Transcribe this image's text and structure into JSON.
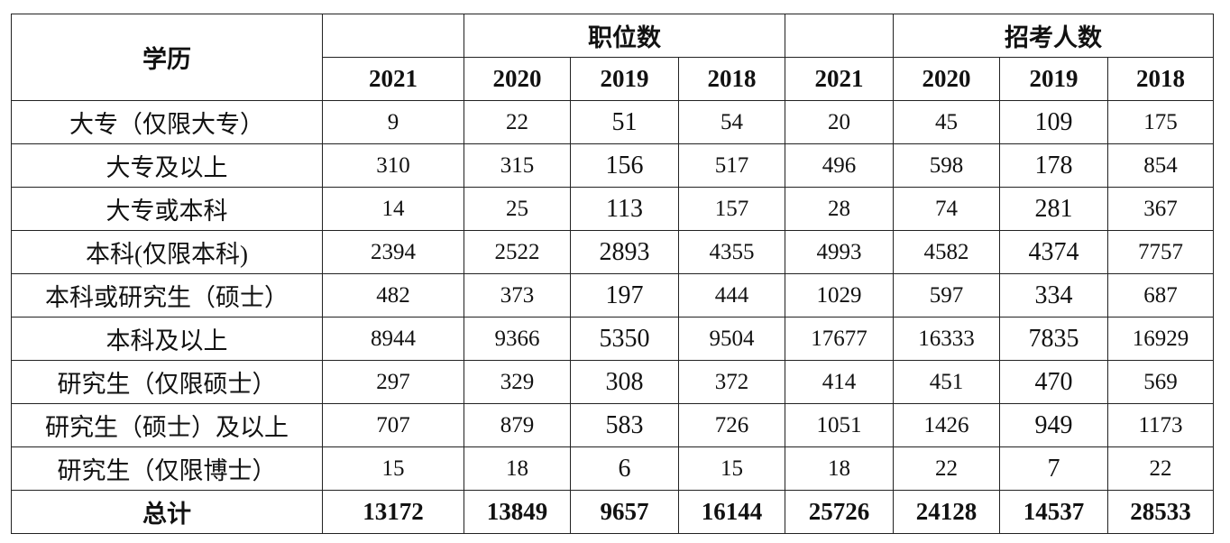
{
  "table": {
    "header": {
      "row_label": "学历",
      "groups": [
        "职位数",
        "招考人数"
      ],
      "years": [
        2021,
        2020,
        2019,
        2018,
        2021,
        2020,
        2019,
        2018
      ]
    },
    "rows": [
      {
        "label": "大专（仅限大专）",
        "values": [
          9,
          22,
          51,
          54,
          20,
          45,
          109,
          175
        ]
      },
      {
        "label": "大专及以上",
        "values": [
          310,
          315,
          156,
          517,
          496,
          598,
          178,
          854
        ]
      },
      {
        "label": "大专或本科",
        "values": [
          14,
          25,
          113,
          157,
          28,
          74,
          281,
          367
        ]
      },
      {
        "label": "本科(仅限本科)",
        "values": [
          2394,
          2522,
          2893,
          4355,
          4993,
          4582,
          4374,
          7757
        ]
      },
      {
        "label": "本科或研究生（硕士）",
        "values": [
          482,
          373,
          197,
          444,
          1029,
          597,
          334,
          687
        ]
      },
      {
        "label": "本科及以上",
        "values": [
          8944,
          9366,
          5350,
          9504,
          17677,
          16333,
          7835,
          16929
        ]
      },
      {
        "label": "研究生（仅限硕士）",
        "values": [
          297,
          329,
          308,
          372,
          414,
          451,
          470,
          569
        ]
      },
      {
        "label": "研究生（硕士）及以上",
        "values": [
          707,
          879,
          583,
          726,
          1051,
          1426,
          949,
          1173
        ]
      },
      {
        "label": "研究生（仅限博士）",
        "values": [
          15,
          18,
          6,
          15,
          18,
          22,
          7,
          22
        ]
      }
    ],
    "total": {
      "label": "总计",
      "values": [
        13172,
        13849,
        9657,
        16144,
        25726,
        24128,
        14537,
        28533
      ]
    }
  }
}
